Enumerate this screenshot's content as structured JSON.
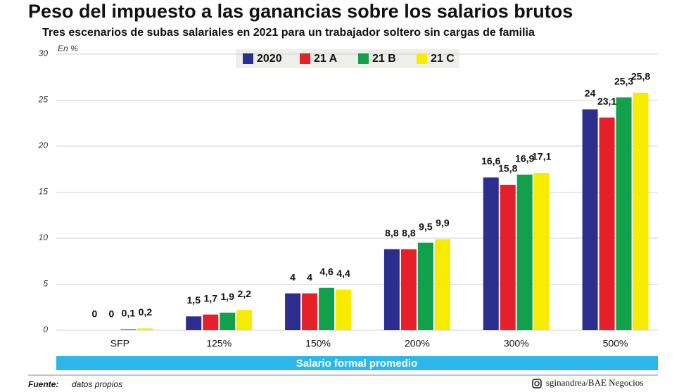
{
  "chart_data": {
    "type": "bar",
    "title": "Peso del impuesto a las ganancias sobre los salarios brutos",
    "subtitle": "Tres escenarios de subas salariales en 2021 para un trabajador soltero sin cargas de familia",
    "y_label": "En %",
    "x_label": "Salario formal promedio",
    "categories": [
      "SFP",
      "125%",
      "150%",
      "200%",
      "300%",
      "500%"
    ],
    "series": [
      {
        "name": "2020",
        "color": "#2b2e8c",
        "values": [
          0,
          1.5,
          4,
          8.8,
          16.6,
          24
        ],
        "value_labels": [
          "0",
          "1,5",
          "4",
          "8,8",
          "16,6",
          "24"
        ]
      },
      {
        "name": "21 A",
        "color": "#e5202a",
        "values": [
          0,
          1.7,
          4,
          8.8,
          15.8,
          23.1
        ],
        "value_labels": [
          "0",
          "1,7",
          "4",
          "8,8",
          "15,8",
          "23,1"
        ]
      },
      {
        "name": "21 B",
        "color": "#12a04a",
        "values": [
          0.1,
          1.9,
          4.6,
          9.5,
          16.9,
          25.3
        ],
        "value_labels": [
          "0,1",
          "1,9",
          "4,6",
          "9,5",
          "16,9",
          "25,3"
        ]
      },
      {
        "name": "21 C",
        "color": "#f7ec00",
        "values": [
          0.2,
          2.2,
          4.4,
          9.9,
          17.1,
          25.8
        ],
        "value_labels": [
          "0,2",
          "2,2",
          "4,4",
          "9,9",
          "17,1",
          "25,8"
        ]
      }
    ],
    "ylim": [
      0,
      30
    ],
    "yticks": [
      0,
      5,
      10,
      15,
      20,
      25,
      30
    ],
    "grid": true,
    "source_label": "Fuente:",
    "source": "datos propios",
    "credit": "sginandrea/BAE Negocios"
  }
}
